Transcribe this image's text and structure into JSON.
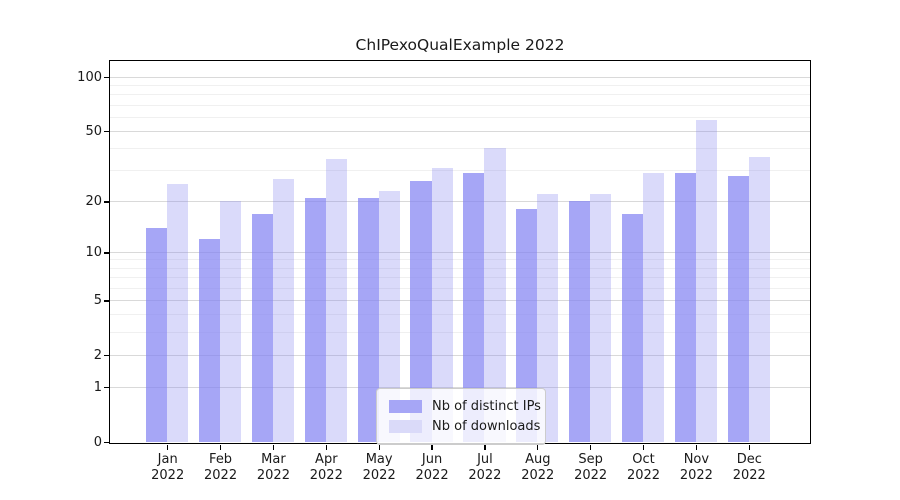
{
  "window": {
    "title": "ChIPexoQualExample 2022"
  },
  "chart_data": {
    "type": "bar",
    "title": "ChIPexoQualExample 2022",
    "categories": [
      "Jan 2022",
      "Feb 2022",
      "Mar 2022",
      "Apr 2022",
      "May 2022",
      "Jun 2022",
      "Jul 2022",
      "Aug 2022",
      "Sep 2022",
      "Oct 2022",
      "Nov 2022",
      "Dec 2022"
    ],
    "series": [
      {
        "name": "Nb of distinct IPs",
        "values": [
          14,
          12,
          17,
          21,
          21,
          26,
          29,
          18,
          20,
          17,
          29,
          28
        ],
        "color": "#a6a6f6",
        "fill": "rgba(128,128,242,0.7)"
      },
      {
        "name": "Nb of downloads",
        "values": [
          25,
          20,
          27,
          35,
          23,
          31,
          40,
          22,
          22,
          29,
          58,
          36
        ],
        "color": "#dadaf9",
        "fill": "rgba(132,132,238,0.3)"
      }
    ],
    "xlabel": "",
    "ylabel": "",
    "yscale": "log1p",
    "ylim": [
      0,
      125
    ],
    "y_major_ticks": [
      100,
      50,
      20,
      10,
      5,
      2,
      1,
      0
    ],
    "y_minor_gridlines": [
      3,
      4,
      6,
      7,
      8,
      9,
      30,
      40,
      60,
      70,
      80,
      90
    ],
    "grid": "on",
    "legend_position": "lower center"
  },
  "legend": {
    "items": [
      {
        "label": "Nb of distinct IPs"
      },
      {
        "label": "Nb of downloads"
      }
    ]
  },
  "colors": {
    "bar_distinct_ips": "#a6a6f6",
    "bar_downloads": "#dadaf9",
    "grid_major": "#d9d9d9",
    "grid_minor": "#f0f0f0",
    "spine": "#000000",
    "text": "#1a1a1a",
    "legend_border": "#cccccc",
    "legend_bg": "rgba(255,255,255,0.8)"
  }
}
